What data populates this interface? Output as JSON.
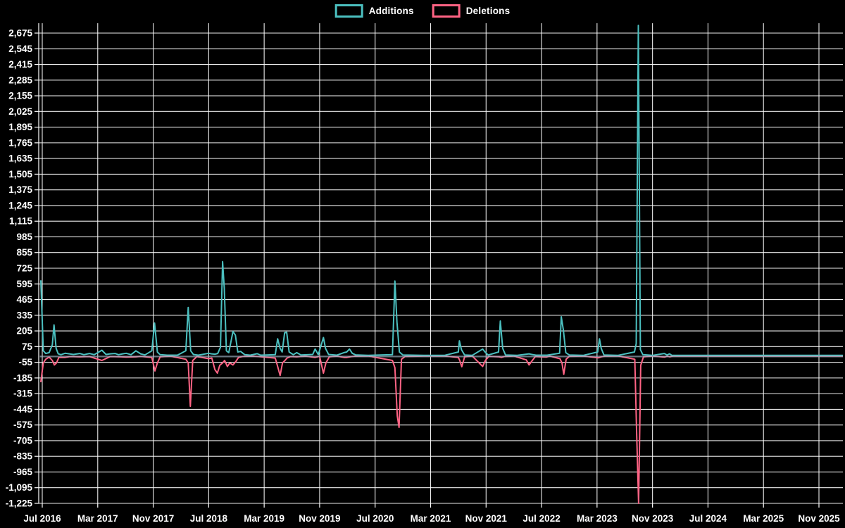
{
  "legend": {
    "items": [
      {
        "label": "Additions",
        "color": "#4bc0c0"
      },
      {
        "label": "Deletions",
        "color": "#ff6384"
      }
    ]
  },
  "colors": {
    "background": "#000000",
    "grid": "#ffffff",
    "text": "#ffffff",
    "additions": "#4bc0c0",
    "deletions": "#ff6384",
    "zero_line": "#9fb3c4"
  },
  "chart_data": {
    "type": "line",
    "title": "",
    "legend_position": "top",
    "grid": true,
    "x_axis": {
      "unit": "months since Jul 2016",
      "tick_labels": [
        "Jul 2016",
        "Mar 2017",
        "Nov 2017",
        "Jul 2018",
        "Mar 2019",
        "Nov 2019",
        "Jul 2020",
        "Mar 2021",
        "Nov 2021",
        "Jul 2022",
        "Mar 2023",
        "Nov 2023",
        "Jul 2024",
        "Mar 2025",
        "Nov 2025"
      ],
      "tick_months": [
        0,
        8,
        16,
        24,
        32,
        40,
        48,
        56,
        64,
        72,
        80,
        88,
        96,
        104,
        112
      ],
      "range_months": [
        -0.5,
        115.5
      ]
    },
    "y_axis": {
      "min": -1225,
      "max": 2675,
      "step": 130,
      "tick_labels": [
        "2,675",
        "2,545",
        "2,415",
        "2,285",
        "2,155",
        "2,025",
        "1,895",
        "1,765",
        "1,635",
        "1,505",
        "1,375",
        "1,245",
        "1,115",
        "985",
        "855",
        "725",
        "595",
        "465",
        "335",
        "205",
        "75",
        "-55",
        "-185",
        "-315",
        "-445",
        "-575",
        "-705",
        "-835",
        "-965",
        "-1,095",
        "-1,225"
      ]
    },
    "series": [
      {
        "name": "Additions",
        "color": "#4bc0c0",
        "points": [
          [
            -0.2,
            620
          ],
          [
            0.15,
            40
          ],
          [
            0.5,
            18
          ],
          [
            1.0,
            25
          ],
          [
            1.45,
            90
          ],
          [
            1.7,
            255
          ],
          [
            2.0,
            60
          ],
          [
            2.3,
            15
          ],
          [
            2.7,
            8
          ],
          [
            3.3,
            20
          ],
          [
            3.9,
            15
          ],
          [
            4.5,
            10
          ],
          [
            5.4,
            18
          ],
          [
            6.0,
            8
          ],
          [
            6.8,
            18
          ],
          [
            7.5,
            8
          ],
          [
            8.6,
            45
          ],
          [
            9.2,
            10
          ],
          [
            9.8,
            15
          ],
          [
            10.5,
            18
          ],
          [
            11.0,
            8
          ],
          [
            11.6,
            15
          ],
          [
            12.1,
            20
          ],
          [
            12.8,
            8
          ],
          [
            13.5,
            40
          ],
          [
            14.2,
            15
          ],
          [
            14.8,
            6
          ],
          [
            15.8,
            40
          ],
          [
            16.2,
            270
          ],
          [
            16.6,
            30
          ],
          [
            17.0,
            8
          ],
          [
            18.0,
            4
          ],
          [
            19.5,
            4
          ],
          [
            20.7,
            40
          ],
          [
            21.05,
            400
          ],
          [
            21.4,
            40
          ],
          [
            21.8,
            10
          ],
          [
            22.5,
            4
          ],
          [
            24.0,
            20
          ],
          [
            24.4,
            15
          ],
          [
            24.9,
            12
          ],
          [
            25.3,
            18
          ],
          [
            25.7,
            70
          ],
          [
            26.0,
            780
          ],
          [
            26.25,
            560
          ],
          [
            26.55,
            40
          ],
          [
            26.9,
            25
          ],
          [
            27.5,
            200
          ],
          [
            27.85,
            170
          ],
          [
            28.2,
            30
          ],
          [
            28.6,
            35
          ],
          [
            29.2,
            8
          ],
          [
            30.0,
            4
          ],
          [
            31.0,
            16
          ],
          [
            31.5,
            4
          ],
          [
            33.6,
            8
          ],
          [
            33.95,
            140
          ],
          [
            34.3,
            60
          ],
          [
            34.6,
            30
          ],
          [
            34.95,
            190
          ],
          [
            35.25,
            195
          ],
          [
            35.6,
            30
          ],
          [
            36.2,
            8
          ],
          [
            36.7,
            25
          ],
          [
            37.3,
            6
          ],
          [
            39.0,
            10
          ],
          [
            39.35,
            55
          ],
          [
            39.8,
            8
          ],
          [
            40.55,
            150
          ],
          [
            40.85,
            60
          ],
          [
            41.3,
            10
          ],
          [
            42.5,
            4
          ],
          [
            43.5,
            25
          ],
          [
            43.9,
            30
          ],
          [
            44.3,
            55
          ],
          [
            44.7,
            20
          ],
          [
            45.2,
            6
          ],
          [
            47.0,
            3
          ],
          [
            50.5,
            8
          ],
          [
            50.85,
            618
          ],
          [
            51.15,
            280
          ],
          [
            51.5,
            30
          ],
          [
            52.0,
            6
          ],
          [
            55.0,
            2
          ],
          [
            58.0,
            2
          ],
          [
            60.0,
            30
          ],
          [
            60.15,
            123
          ],
          [
            60.45,
            50
          ],
          [
            60.9,
            6
          ],
          [
            62.0,
            2
          ],
          [
            63.5,
            55
          ],
          [
            63.85,
            30
          ],
          [
            64.3,
            5
          ],
          [
            65.8,
            30
          ],
          [
            66.05,
            287
          ],
          [
            66.4,
            60
          ],
          [
            66.8,
            6
          ],
          [
            68.5,
            2
          ],
          [
            69.8,
            12
          ],
          [
            70.2,
            15
          ],
          [
            70.6,
            10
          ],
          [
            71.2,
            4
          ],
          [
            72.8,
            4
          ],
          [
            74.6,
            20
          ],
          [
            74.85,
            322
          ],
          [
            75.15,
            210
          ],
          [
            75.5,
            25
          ],
          [
            76.0,
            5
          ],
          [
            78.0,
            2
          ],
          [
            80.1,
            30
          ],
          [
            80.35,
            140
          ],
          [
            80.6,
            60
          ],
          [
            81.0,
            5
          ],
          [
            83.0,
            2
          ],
          [
            85.4,
            30
          ],
          [
            85.65,
            100
          ],
          [
            85.95,
            2739
          ],
          [
            86.25,
            50
          ],
          [
            86.6,
            8
          ],
          [
            88.0,
            2
          ],
          [
            89.7,
            18
          ],
          [
            90.1,
            6
          ],
          [
            90.45,
            15
          ],
          [
            90.8,
            2
          ],
          [
            95.0,
            2
          ],
          [
            100.0,
            2
          ],
          [
            105.0,
            2
          ],
          [
            110.0,
            2
          ],
          [
            115.4,
            2
          ]
        ]
      },
      {
        "name": "Deletions",
        "color": "#ff6384",
        "points": [
          [
            -0.2,
            -215
          ],
          [
            0.15,
            -60
          ],
          [
            0.5,
            -30
          ],
          [
            1.0,
            -12
          ],
          [
            1.45,
            -40
          ],
          [
            1.75,
            -77
          ],
          [
            2.05,
            -60
          ],
          [
            2.4,
            -15
          ],
          [
            3.3,
            -15
          ],
          [
            4.0,
            -8
          ],
          [
            5.4,
            -10
          ],
          [
            6.8,
            -8
          ],
          [
            8.6,
            -40
          ],
          [
            9.8,
            -8
          ],
          [
            11.4,
            -10
          ],
          [
            12.1,
            -12
          ],
          [
            13.5,
            -10
          ],
          [
            14.2,
            -6
          ],
          [
            15.8,
            -15
          ],
          [
            16.25,
            -127
          ],
          [
            16.6,
            -60
          ],
          [
            17.0,
            -10
          ],
          [
            18.5,
            -5
          ],
          [
            20.7,
            -30
          ],
          [
            21.05,
            -60
          ],
          [
            21.35,
            -420
          ],
          [
            21.7,
            -40
          ],
          [
            22.3,
            -8
          ],
          [
            24.0,
            -25
          ],
          [
            24.45,
            -20
          ],
          [
            24.9,
            -116
          ],
          [
            25.25,
            -145
          ],
          [
            25.6,
            -80
          ],
          [
            26.0,
            -60
          ],
          [
            26.3,
            -40
          ],
          [
            26.7,
            -90
          ],
          [
            27.05,
            -60
          ],
          [
            27.5,
            -77
          ],
          [
            27.9,
            -50
          ],
          [
            28.3,
            -15
          ],
          [
            29.0,
            -6
          ],
          [
            30.5,
            -4
          ],
          [
            33.6,
            -20
          ],
          [
            33.95,
            -90
          ],
          [
            34.3,
            -165
          ],
          [
            34.65,
            -60
          ],
          [
            35.0,
            -40
          ],
          [
            35.3,
            -20
          ],
          [
            35.8,
            -8
          ],
          [
            36.7,
            -10
          ],
          [
            38.0,
            -4
          ],
          [
            39.35,
            -15
          ],
          [
            40.0,
            -6
          ],
          [
            40.55,
            -145
          ],
          [
            40.9,
            -60
          ],
          [
            41.4,
            -10
          ],
          [
            42.5,
            -4
          ],
          [
            43.5,
            -15
          ],
          [
            43.95,
            -15
          ],
          [
            44.35,
            -10
          ],
          [
            45.0,
            -5
          ],
          [
            47.0,
            -3
          ],
          [
            50.5,
            -40
          ],
          [
            50.85,
            -100
          ],
          [
            51.2,
            -500
          ],
          [
            51.45,
            -595
          ],
          [
            51.8,
            -30
          ],
          [
            52.3,
            -8
          ],
          [
            55.0,
            -3
          ],
          [
            58.0,
            -3
          ],
          [
            60.0,
            -15
          ],
          [
            60.2,
            -40
          ],
          [
            60.5,
            -92
          ],
          [
            60.9,
            -10
          ],
          [
            62.0,
            -3
          ],
          [
            63.5,
            -90
          ],
          [
            63.9,
            -40
          ],
          [
            64.4,
            -6
          ],
          [
            65.9,
            -10
          ],
          [
            66.2,
            -15
          ],
          [
            66.6,
            -8
          ],
          [
            68.0,
            -3
          ],
          [
            69.8,
            -35
          ],
          [
            70.2,
            -77
          ],
          [
            70.6,
            -45
          ],
          [
            71.1,
            -8
          ],
          [
            72.7,
            -12
          ],
          [
            73.2,
            -4
          ],
          [
            74.65,
            -25
          ],
          [
            74.95,
            -60
          ],
          [
            75.2,
            -155
          ],
          [
            75.55,
            -30
          ],
          [
            76.0,
            -6
          ],
          [
            78.0,
            -3
          ],
          [
            80.2,
            -18
          ],
          [
            80.6,
            -10
          ],
          [
            81.2,
            -4
          ],
          [
            83.0,
            -3
          ],
          [
            85.45,
            -30
          ],
          [
            85.7,
            -620
          ],
          [
            86.0,
            -1225
          ],
          [
            86.3,
            -80
          ],
          [
            86.7,
            -10
          ],
          [
            88.0,
            -3
          ],
          [
            89.75,
            -12
          ],
          [
            90.15,
            -5
          ],
          [
            90.5,
            -10
          ],
          [
            91.0,
            -3
          ],
          [
            95.0,
            -3
          ],
          [
            100.0,
            -3
          ],
          [
            105.0,
            -3
          ],
          [
            110.0,
            -3
          ],
          [
            115.4,
            -3
          ]
        ]
      }
    ]
  }
}
